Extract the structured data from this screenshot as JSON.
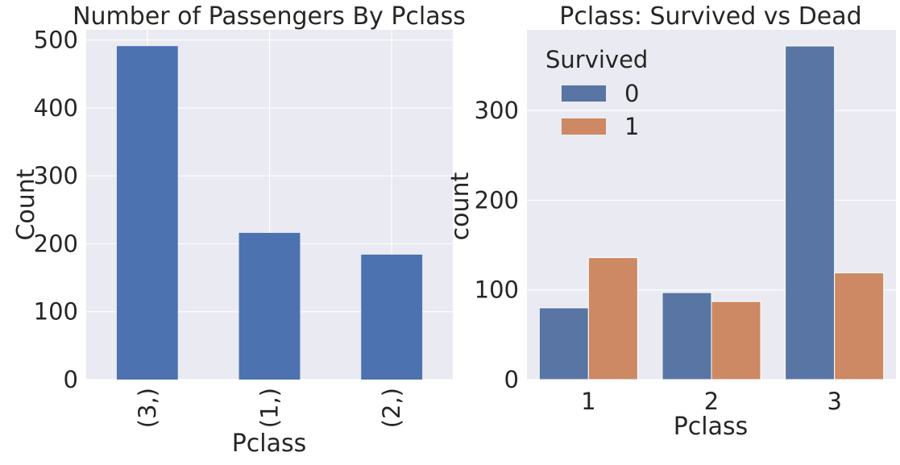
{
  "chart_data": [
    {
      "type": "bar",
      "title": "Number of Passengers By Pclass",
      "xlabel": "Pclass",
      "ylabel": "Count",
      "categories": [
        "(3,)",
        "(1,)",
        "(2,)"
      ],
      "values": [
        491,
        216,
        184
      ],
      "ylim": [
        0,
        515
      ],
      "yticks": [
        "0",
        "100",
        "200",
        "300",
        "400",
        "500"
      ],
      "grid": true,
      "colors": {
        "bar": "#4c72b0",
        "background": "#eaeaf2",
        "grid": "#ffffff"
      }
    },
    {
      "type": "bar",
      "title": "Pclass: Survived vs Dead",
      "xlabel": "Pclass",
      "ylabel": "count",
      "categories": [
        "1",
        "2",
        "3"
      ],
      "series": [
        {
          "name": "0",
          "values": [
            80,
            97,
            372
          ],
          "color": "#5875a4"
        },
        {
          "name": "1",
          "values": [
            136,
            87,
            119
          ],
          "color": "#cc8963"
        }
      ],
      "ylim": [
        0,
        390
      ],
      "yticks": [
        "0",
        "100",
        "200",
        "300"
      ],
      "legend": {
        "title": "Survived",
        "placement": "top-left"
      },
      "grid": true,
      "colors": {
        "background": "#eaeaf2",
        "grid": "#ffffff"
      }
    }
  ]
}
